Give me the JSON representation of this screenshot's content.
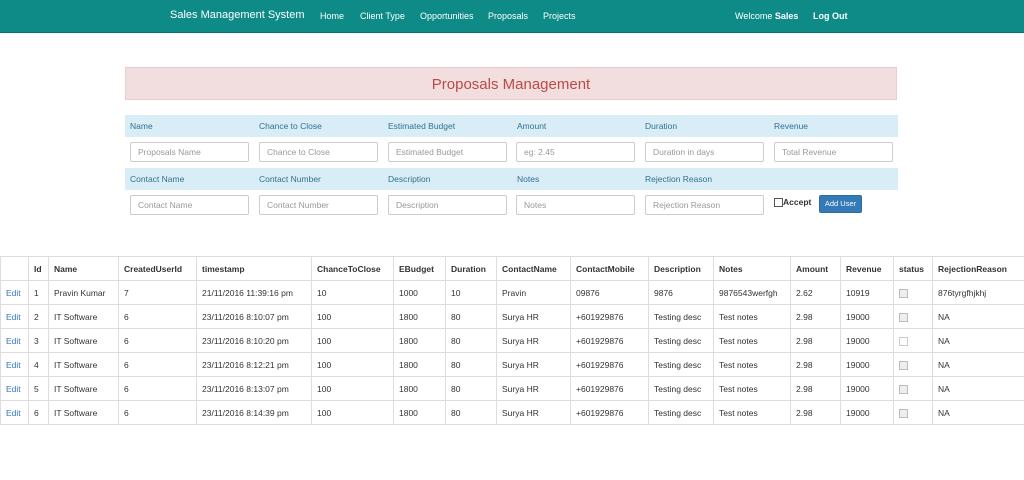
{
  "navbar": {
    "brand": "Sales Management System",
    "links": [
      "Home",
      "Client Type",
      "Opportunities",
      "Proposals",
      "Projects"
    ],
    "welcome_prefix": "Welcome",
    "welcome_user": "Sales",
    "logout": "Log Out",
    "bg_color": "#0e8b86"
  },
  "title": "Proposals Management",
  "form": {
    "row1_labels": [
      "Name",
      "Chance to Close",
      "Estimated Budget",
      "Amount",
      "Duration",
      "Revenue"
    ],
    "row1_placeholders": [
      "Proposals Name",
      "Chance to Close",
      "Estimated Budget",
      "eg: 2.45",
      "Duration in days",
      "Total Revenue"
    ],
    "row2_labels": [
      "Contact Name",
      "Contact Number",
      "Description",
      "Notes",
      "Rejection Reason"
    ],
    "row2_placeholders": [
      "Contact Name",
      "Contact Number",
      "Description",
      "Notes",
      "Rejection Reason"
    ],
    "accept_label": "Accept",
    "add_button": "Add User"
  },
  "table": {
    "headers": [
      "",
      "Id",
      "Name",
      "CreatedUserId",
      "timestamp",
      "ChanceToClose",
      "EBudget",
      "Duration",
      "ContactName",
      "ContactMobile",
      "Description",
      "Notes",
      "Amount",
      "Revenue",
      "status",
      "RejectionReason"
    ],
    "edit_label": "Edit",
    "rows": [
      {
        "id": "1",
        "name": "Pravin Kumar",
        "created_user_id": "7",
        "timestamp": "21/11/2016 11:39:16 pm",
        "chance": "10",
        "ebudget": "1000",
        "duration": "10",
        "contact_name": "Pravin",
        "contact_mobile": "09876",
        "description": "9876",
        "notes": "9876543werfgh",
        "amount": "2.62",
        "revenue": "10919",
        "status": true,
        "rejection": "876tyrgfhjkhj"
      },
      {
        "id": "2",
        "name": "IT Software",
        "created_user_id": "6",
        "timestamp": "23/11/2016 8:10:07 pm",
        "chance": "100",
        "ebudget": "1800",
        "duration": "80",
        "contact_name": "Surya HR",
        "contact_mobile": "+601929876",
        "description": "Testing desc",
        "notes": "Test notes",
        "amount": "2.98",
        "revenue": "19000",
        "status": true,
        "rejection": "NA"
      },
      {
        "id": "3",
        "name": "IT Software",
        "created_user_id": "6",
        "timestamp": "23/11/2016 8:10:20 pm",
        "chance": "100",
        "ebudget": "1800",
        "duration": "80",
        "contact_name": "Surya HR",
        "contact_mobile": "+601929876",
        "description": "Testing desc",
        "notes": "Test notes",
        "amount": "2.98",
        "revenue": "19000",
        "status": false,
        "rejection": "NA"
      },
      {
        "id": "4",
        "name": "IT Software",
        "created_user_id": "6",
        "timestamp": "23/11/2016 8:12:21 pm",
        "chance": "100",
        "ebudget": "1800",
        "duration": "80",
        "contact_name": "Surya HR",
        "contact_mobile": "+601929876",
        "description": "Testing desc",
        "notes": "Test notes",
        "amount": "2.98",
        "revenue": "19000",
        "status": true,
        "rejection": "NA"
      },
      {
        "id": "5",
        "name": "IT Software",
        "created_user_id": "6",
        "timestamp": "23/11/2016 8:13:07 pm",
        "chance": "100",
        "ebudget": "1800",
        "duration": "80",
        "contact_name": "Surya HR",
        "contact_mobile": "+601929876",
        "description": "Testing desc",
        "notes": "Test notes",
        "amount": "2.98",
        "revenue": "19000",
        "status": true,
        "rejection": "NA"
      },
      {
        "id": "6",
        "name": "IT Software",
        "created_user_id": "6",
        "timestamp": "23/11/2016 8:14:39 pm",
        "chance": "100",
        "ebudget": "1800",
        "duration": "80",
        "contact_name": "Surya HR",
        "contact_mobile": "+601929876",
        "description": "Testing desc",
        "notes": "Test notes",
        "amount": "2.98",
        "revenue": "19000",
        "status": true,
        "rejection": "NA"
      }
    ]
  }
}
